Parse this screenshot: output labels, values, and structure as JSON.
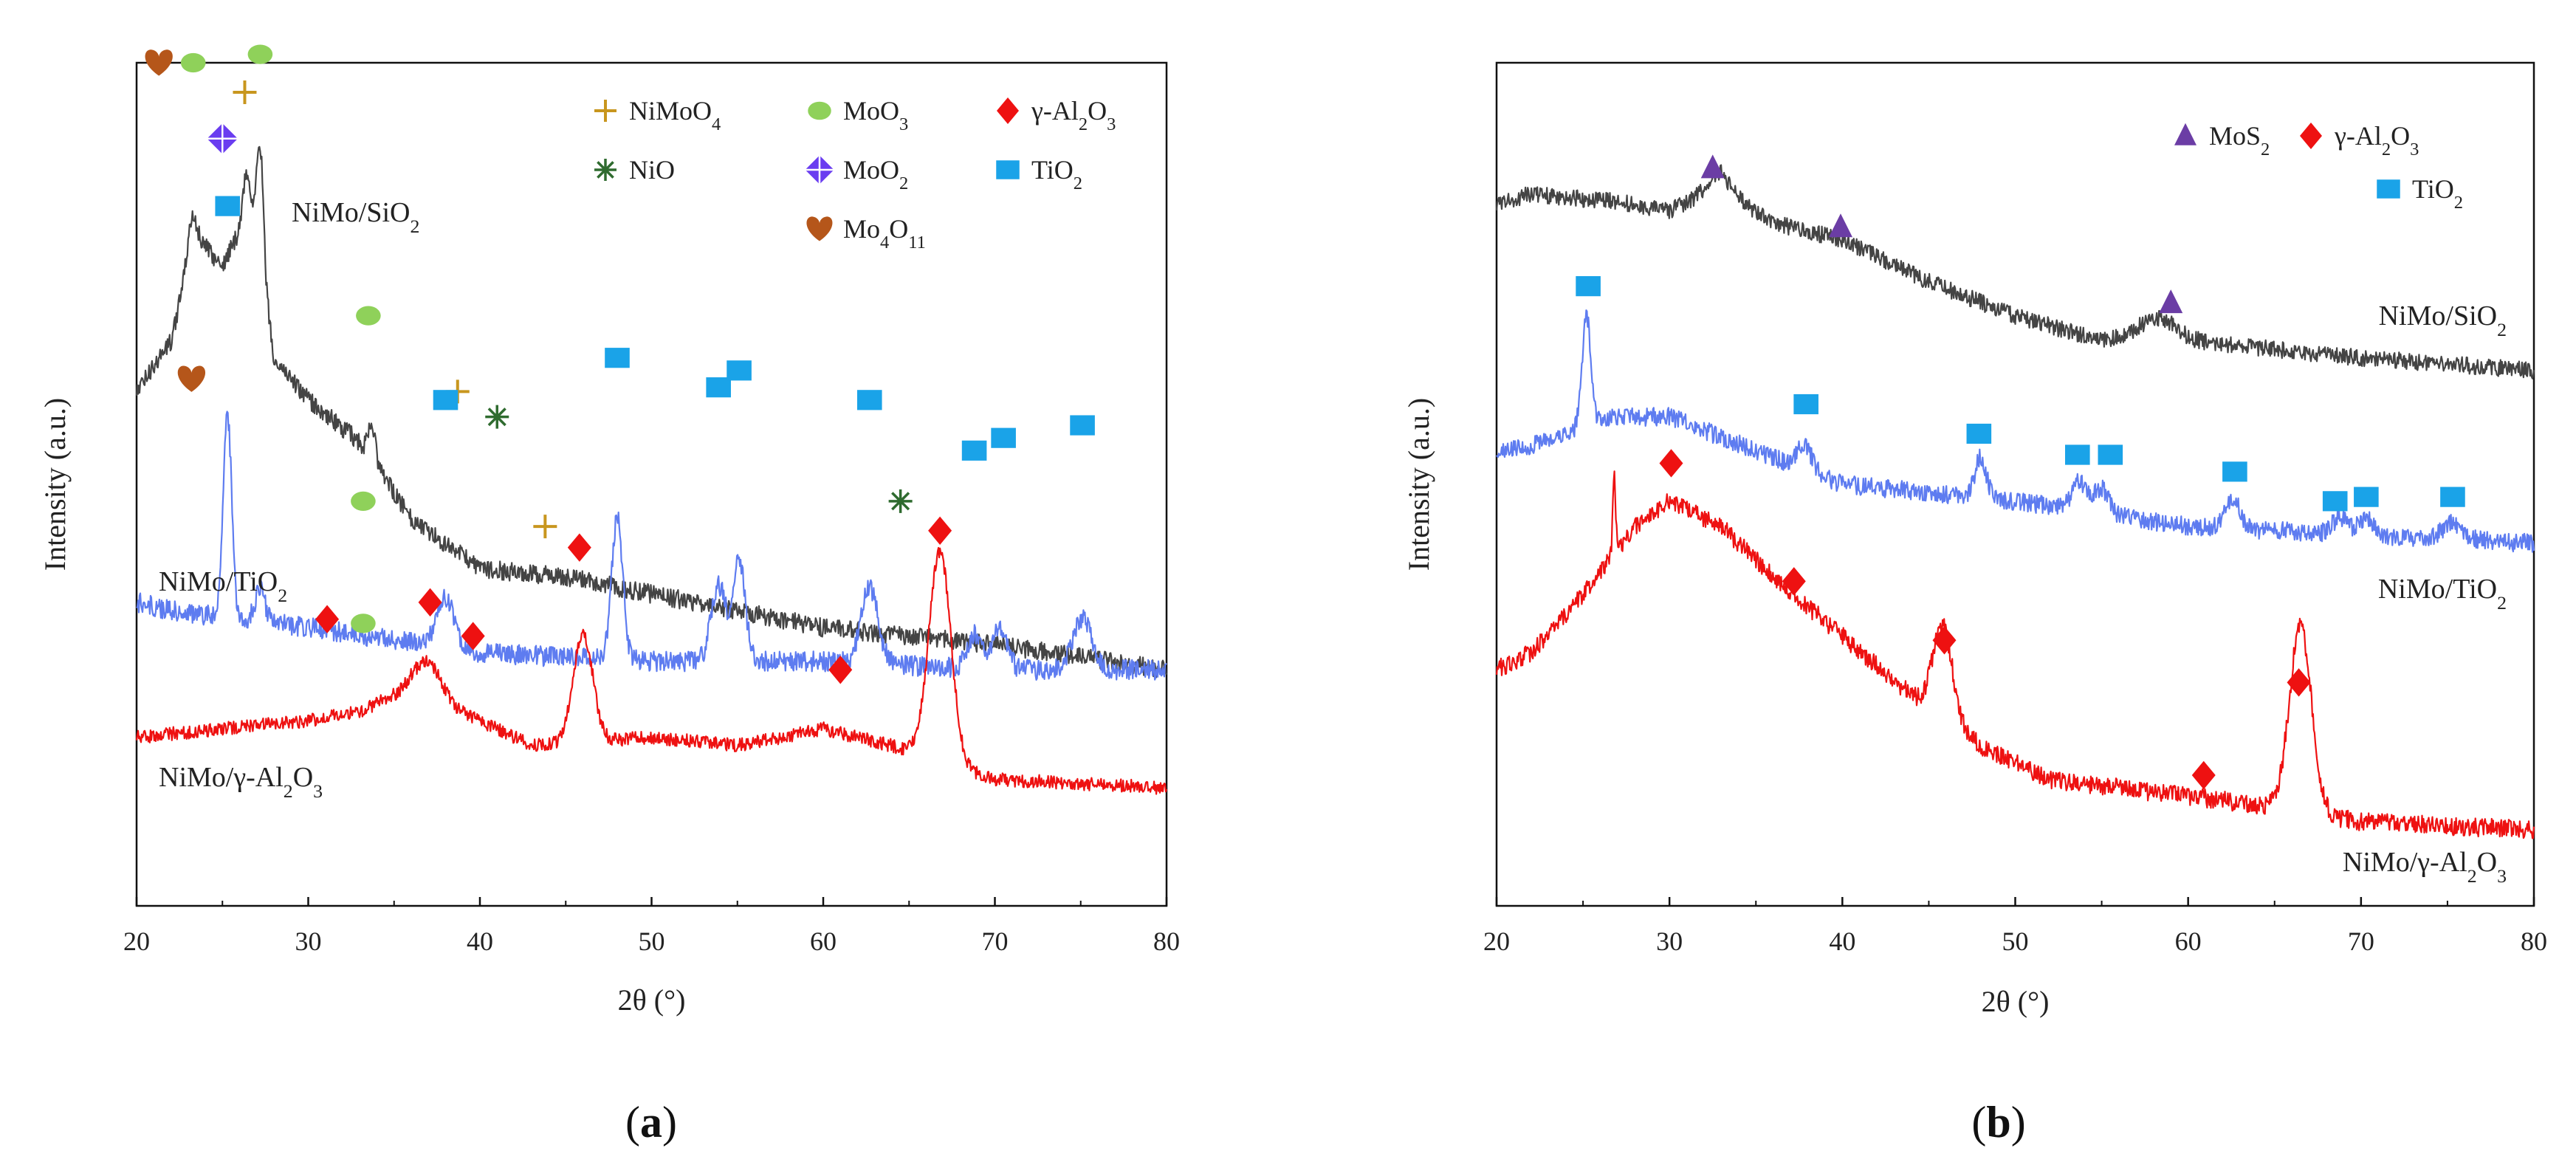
{
  "chart_data": [
    {
      "id": "a",
      "type": "line",
      "panel_label": "(a)",
      "xlabel": "2θ (°)",
      "ylabel": "Intensity (a.u.)",
      "xlim": [
        20,
        80
      ],
      "x_ticks": [
        20,
        30,
        40,
        50,
        60,
        70,
        80
      ],
      "y_ticks_shown": false,
      "legend": [
        {
          "symbol": "plus",
          "color": "#c8961e",
          "text": "NiMoO",
          "sub": "4"
        },
        {
          "symbol": "circle",
          "color": "#8fd15a",
          "text": "MoO",
          "sub": "3"
        },
        {
          "symbol": "diamond",
          "color": "#ee1111",
          "text": "γ-Al",
          "sub": "2",
          "text2": "O",
          "sub2": "3"
        },
        {
          "symbol": "star",
          "color": "#2f6b2f",
          "text": "NiO"
        },
        {
          "symbol": "diamond4",
          "color": "#6a3df0",
          "text": "MoO",
          "sub": "2"
        },
        {
          "symbol": "square",
          "color": "#1aa3e8",
          "text": "TiO",
          "sub": "2"
        },
        {
          "symbol": "heart",
          "color": "#b5561a",
          "text": "Mo",
          "sub": "4",
          "text2": "O",
          "sub2": "11"
        }
      ],
      "series": [
        {
          "name": "NiMo/SiO2",
          "label_text": "NiMo/SiO",
          "label_sub": "2",
          "color": "#444444",
          "baseline": 0.5,
          "offset": 0.265,
          "noise": 0.011,
          "background": [
            [
              20,
              0.39
            ],
            [
              21,
              0.36
            ],
            [
              22,
              0.33
            ],
            [
              23,
              0.24
            ],
            [
              24,
              0.22
            ],
            [
              25,
              0.24
            ],
            [
              26,
              0.2
            ],
            [
              27,
              0.18
            ],
            [
              28,
              0.35
            ],
            [
              30,
              0.4
            ],
            [
              33,
              0.45
            ],
            [
              36,
              0.54
            ],
            [
              40,
              0.6
            ],
            [
              45,
              0.61
            ],
            [
              50,
              0.63
            ],
            [
              55,
              0.65
            ],
            [
              60,
              0.67
            ],
            [
              70,
              0.69
            ],
            [
              80,
              0.72
            ]
          ],
          "peaks": [
            [
              23.3,
              0.05,
              0.4
            ],
            [
              26.4,
              0.06,
              0.3
            ],
            [
              27.2,
              0.12,
              0.25
            ],
            [
              33.7,
              0.04,
              0.3
            ]
          ],
          "markers": [
            {
              "symbol": "heart",
              "x": 21.3,
              "y": 0.0
            },
            {
              "symbol": "circle",
              "x": 23.3,
              "y": 0.0
            },
            {
              "symbol": "diamond4",
              "x": 25.0,
              "y": 0.09
            },
            {
              "symbol": "plus",
              "x": 26.3,
              "y": 0.035
            },
            {
              "symbol": "circle",
              "x": 27.2,
              "y": -0.01
            },
            {
              "symbol": "circle",
              "x": 33.5,
              "y": 0.3
            },
            {
              "symbol": "plus",
              "x": 38.7,
              "y": 0.39
            },
            {
              "symbol": "star",
              "x": 41.0,
              "y": 0.42
            },
            {
              "symbol": "star",
              "x": 64.5,
              "y": 0.52
            }
          ]
        },
        {
          "name": "NiMo/TiO2",
          "label_text": "NiMo/TiO",
          "label_sub": "2",
          "color": "#5e7cf0",
          "baseline": 0.66,
          "offset": 0,
          "noise": 0.012,
          "background": [
            [
              20,
              0.64
            ],
            [
              22,
              0.65
            ],
            [
              30,
              0.67
            ],
            [
              40,
              0.7
            ],
            [
              50,
              0.71
            ],
            [
              60,
              0.71
            ],
            [
              70,
              0.72
            ],
            [
              80,
              0.72
            ]
          ],
          "peaks": [
            [
              25.3,
              0.24,
              0.35
            ],
            [
              27.2,
              0.04,
              0.4
            ],
            [
              38.0,
              0.06,
              0.7
            ],
            [
              48.0,
              0.17,
              0.45
            ],
            [
              53.9,
              0.09,
              0.6
            ],
            [
              55.1,
              0.12,
              0.5
            ],
            [
              62.7,
              0.09,
              0.7
            ],
            [
              68.8,
              0.04,
              0.6
            ],
            [
              70.3,
              0.05,
              0.6
            ],
            [
              75.1,
              0.06,
              0.8
            ]
          ],
          "markers": [
            {
              "symbol": "square",
              "x": 25.3,
              "y": 0.17
            },
            {
              "symbol": "heart",
              "x": 23.2,
              "y": 0.375
            },
            {
              "symbol": "square",
              "x": 38.0,
              "y": 0.4
            },
            {
              "symbol": "circle",
              "x": 33.2,
              "y": 0.52
            },
            {
              "symbol": "plus",
              "x": 43.8,
              "y": 0.55
            },
            {
              "symbol": "square",
              "x": 48.0,
              "y": 0.35
            },
            {
              "symbol": "square",
              "x": 53.9,
              "y": 0.385
            },
            {
              "symbol": "square",
              "x": 55.1,
              "y": 0.365
            },
            {
              "symbol": "square",
              "x": 62.7,
              "y": 0.4
            },
            {
              "symbol": "square",
              "x": 68.8,
              "y": 0.46
            },
            {
              "symbol": "square",
              "x": 70.5,
              "y": 0.445
            },
            {
              "symbol": "square",
              "x": 75.1,
              "y": 0.43
            }
          ]
        },
        {
          "name": "NiMo/γ-Al2O3",
          "label_text": "NiMo/γ-Al",
          "label_sub": "2",
          "label_text2": "O",
          "label_sub2": "3",
          "color": "#ee1111",
          "baseline": 0.8,
          "offset": 0,
          "noise": 0.008,
          "background": [
            [
              20,
              0.8
            ],
            [
              25,
              0.79
            ],
            [
              30,
              0.78
            ],
            [
              33,
              0.77
            ],
            [
              36,
              0.74
            ],
            [
              40,
              0.78
            ],
            [
              43,
              0.81
            ],
            [
              50,
              0.8
            ],
            [
              55,
              0.81
            ],
            [
              60,
              0.79
            ],
            [
              64,
              0.81
            ],
            [
              70,
              0.85
            ],
            [
              80,
              0.86
            ]
          ],
          "peaks": [
            [
              37.0,
              0.04,
              1.0
            ],
            [
              46.0,
              0.13,
              0.8
            ],
            [
              66.8,
              0.25,
              0.9
            ]
          ],
          "markers": [
            {
              "symbol": "diamond",
              "x": 31.1,
              "y": 0.66
            },
            {
              "symbol": "circle",
              "x": 33.2,
              "y": 0.665
            },
            {
              "symbol": "diamond",
              "x": 37.1,
              "y": 0.64
            },
            {
              "symbol": "diamond",
              "x": 39.6,
              "y": 0.68
            },
            {
              "symbol": "diamond",
              "x": 45.8,
              "y": 0.575
            },
            {
              "symbol": "diamond",
              "x": 61.0,
              "y": 0.72
            },
            {
              "symbol": "diamond",
              "x": 66.8,
              "y": 0.555
            }
          ]
        }
      ]
    },
    {
      "id": "b",
      "type": "line",
      "panel_label": "(b)",
      "xlabel": "2θ (°)",
      "ylabel": "Intensity (a.u.)",
      "xlim": [
        20,
        80
      ],
      "x_ticks": [
        20,
        30,
        40,
        50,
        60,
        70,
        80
      ],
      "y_ticks_shown": false,
      "legend": [
        {
          "symbol": "triangle",
          "color": "#6b3da5",
          "text": "MoS",
          "sub": "2"
        },
        {
          "symbol": "diamond",
          "color": "#ee1111",
          "text": "γ-Al",
          "sub": "2",
          "text2": "O",
          "sub2": "3"
        },
        {
          "symbol": "square",
          "color": "#1aa3e8",
          "text": "TiO",
          "sub": "2"
        }
      ],
      "series": [
        {
          "name": "NiMo/SiO2",
          "label_text": "NiMo/SiO",
          "label_sub": "2",
          "color": "#444444",
          "baseline": 0.17,
          "offset": 0,
          "noise": 0.01,
          "background": [
            [
              20,
              0.17
            ],
            [
              22,
              0.155
            ],
            [
              24,
              0.16
            ],
            [
              27,
              0.165
            ],
            [
              30,
              0.175
            ],
            [
              33,
              0.15
            ],
            [
              36,
              0.19
            ],
            [
              40,
              0.21
            ],
            [
              45,
              0.26
            ],
            [
              50,
              0.3
            ],
            [
              55,
              0.33
            ],
            [
              58,
              0.315
            ],
            [
              60,
              0.33
            ],
            [
              70,
              0.35
            ],
            [
              80,
              0.365
            ]
          ],
          "peaks": [
            [
              32.8,
              0.02,
              1.0
            ],
            [
              58.5,
              0.015,
              1.5
            ]
          ],
          "markers": [
            {
              "symbol": "triangle",
              "x": 32.5,
              "y": 0.125
            },
            {
              "symbol": "triangle",
              "x": 39.9,
              "y": 0.195
            },
            {
              "symbol": "triangle",
              "x": 59.0,
              "y": 0.285
            }
          ]
        },
        {
          "name": "NiMo/TiO2",
          "label_text": "NiMo/TiO",
          "label_sub": "2",
          "color": "#5e7cf0",
          "baseline": 0.46,
          "offset": 0,
          "noise": 0.011,
          "background": [
            [
              20,
              0.46
            ],
            [
              23,
              0.45
            ],
            [
              25,
              0.43
            ],
            [
              27,
              0.42
            ],
            [
              30,
              0.42
            ],
            [
              35,
              0.46
            ],
            [
              40,
              0.5
            ],
            [
              45,
              0.51
            ],
            [
              50,
              0.52
            ],
            [
              60,
              0.55
            ],
            [
              70,
              0.56
            ],
            [
              80,
              0.57
            ]
          ],
          "peaks": [
            [
              25.2,
              0.13,
              0.35
            ],
            [
              37.8,
              0.03,
              0.6
            ],
            [
              48.0,
              0.05,
              0.45
            ],
            [
              53.7,
              0.035,
              0.6
            ],
            [
              55.0,
              0.03,
              0.6
            ],
            [
              62.6,
              0.035,
              0.6
            ],
            [
              68.8,
              0.02,
              0.6
            ],
            [
              70.3,
              0.02,
              0.6
            ],
            [
              75.3,
              0.02,
              0.8
            ]
          ],
          "markers": [
            {
              "symbol": "square",
              "x": 25.3,
              "y": 0.265
            },
            {
              "symbol": "square",
              "x": 37.9,
              "y": 0.405
            },
            {
              "symbol": "square",
              "x": 47.9,
              "y": 0.44
            },
            {
              "symbol": "square",
              "x": 53.6,
              "y": 0.465
            },
            {
              "symbol": "square",
              "x": 55.5,
              "y": 0.465
            },
            {
              "symbol": "square",
              "x": 62.7,
              "y": 0.485
            },
            {
              "symbol": "square",
              "x": 68.5,
              "y": 0.52
            },
            {
              "symbol": "square",
              "x": 70.3,
              "y": 0.515
            },
            {
              "symbol": "square",
              "x": 75.3,
              "y": 0.515
            }
          ]
        },
        {
          "name": "NiMo/γ-Al2O3",
          "label_text": "NiMo/γ-Al",
          "label_sub": "2",
          "label_text2": "O",
          "label_sub2": "3",
          "color": "#ee1111",
          "baseline": 0.72,
          "offset": 0,
          "noise": 0.011,
          "background": [
            [
              20,
              0.72
            ],
            [
              22,
              0.7
            ],
            [
              25,
              0.63
            ],
            [
              28,
              0.55
            ],
            [
              30,
              0.52
            ],
            [
              33,
              0.55
            ],
            [
              36,
              0.61
            ],
            [
              40,
              0.68
            ],
            [
              44,
              0.75
            ],
            [
              48,
              0.81
            ],
            [
              52,
              0.85
            ],
            [
              58,
              0.865
            ],
            [
              64,
              0.88
            ],
            [
              70,
              0.9
            ],
            [
              80,
              0.91
            ]
          ],
          "peaks": [
            [
              26.8,
              0.09,
              0.12
            ],
            [
              45.8,
              0.11,
              0.8
            ],
            [
              66.5,
              0.22,
              0.9
            ]
          ],
          "markers": [
            {
              "symbol": "diamond",
              "x": 30.1,
              "y": 0.475
            },
            {
              "symbol": "diamond",
              "x": 37.2,
              "y": 0.615
            },
            {
              "symbol": "diamond",
              "x": 45.9,
              "y": 0.685
            },
            {
              "symbol": "diamond",
              "x": 60.9,
              "y": 0.845
            },
            {
              "symbol": "diamond",
              "x": 66.4,
              "y": 0.735
            }
          ]
        }
      ]
    }
  ]
}
